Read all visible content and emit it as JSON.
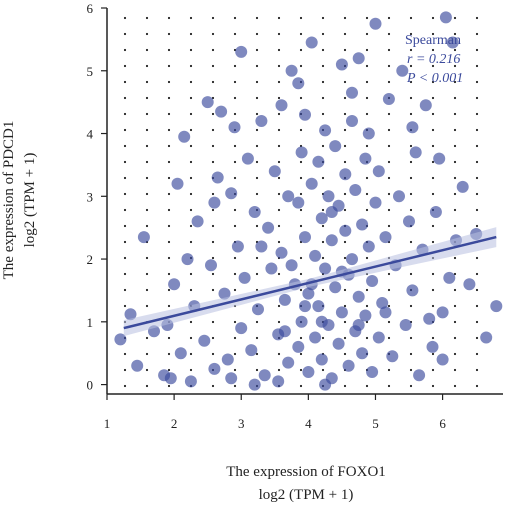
{
  "chart_data": {
    "type": "scatter",
    "title": "",
    "xlabel": "The expression of FOXO1",
    "xlabel_unit": "log2 (TPM + 1)",
    "ylabel": "The expression of PDCD1",
    "ylabel_unit": "log2 (TPM + 1)",
    "xlim": [
      1.0,
      6.9
    ],
    "ylim": [
      -0.15,
      6.0
    ],
    "x_ticks": [
      1,
      2,
      3,
      4,
      5,
      6
    ],
    "y_ticks": [
      0,
      1,
      2,
      3,
      4,
      5,
      6
    ],
    "x_tick_labels": [
      "1",
      "2",
      "3",
      "4",
      "5",
      "6"
    ],
    "y_tick_labels": [
      "0",
      "1",
      "2",
      "3",
      "4",
      "5",
      "6"
    ],
    "grid": "dotted",
    "point_color": "#3b4a9c",
    "annotation": {
      "method": "Spearman",
      "r_label": "r = 0.216",
      "p_label": "P < 0.001"
    },
    "trend_line": {
      "x": [
        1.25,
        6.8
      ],
      "y": [
        0.9,
        2.35
      ]
    },
    "points": [
      [
        1.2,
        0.72
      ],
      [
        1.35,
        1.12
      ],
      [
        1.45,
        0.3
      ],
      [
        1.55,
        2.35
      ],
      [
        1.7,
        0.85
      ],
      [
        1.85,
        0.15
      ],
      [
        1.9,
        0.95
      ],
      [
        1.95,
        0.1
      ],
      [
        2.0,
        1.6
      ],
      [
        2.05,
        3.2
      ],
      [
        2.1,
        0.5
      ],
      [
        2.15,
        3.95
      ],
      [
        2.2,
        2.0
      ],
      [
        2.3,
        1.25
      ],
      [
        2.35,
        2.6
      ],
      [
        2.45,
        0.7
      ],
      [
        2.5,
        4.5
      ],
      [
        2.55,
        1.9
      ],
      [
        2.6,
        0.25
      ],
      [
        2.65,
        3.3
      ],
      [
        2.7,
        4.35
      ],
      [
        2.75,
        1.45
      ],
      [
        2.8,
        0.4
      ],
      [
        2.85,
        3.05
      ],
      [
        2.9,
        4.1
      ],
      [
        2.95,
        2.2
      ],
      [
        3.0,
        5.3
      ],
      [
        3.0,
        0.9
      ],
      [
        3.05,
        1.7
      ],
      [
        3.1,
        3.6
      ],
      [
        3.15,
        0.55
      ],
      [
        3.2,
        2.75
      ],
      [
        3.25,
        1.2
      ],
      [
        3.3,
        4.2
      ],
      [
        3.35,
        0.15
      ],
      [
        3.4,
        2.5
      ],
      [
        3.45,
        1.85
      ],
      [
        3.5,
        3.4
      ],
      [
        3.55,
        0.8
      ],
      [
        3.6,
        4.45
      ],
      [
        3.6,
        2.1
      ],
      [
        3.65,
        1.35
      ],
      [
        3.7,
        0.35
      ],
      [
        3.7,
        3.0
      ],
      [
        3.75,
        5.0
      ],
      [
        3.8,
        1.6
      ],
      [
        3.85,
        2.9
      ],
      [
        3.85,
        0.6
      ],
      [
        3.9,
        3.7
      ],
      [
        3.9,
        1.0
      ],
      [
        3.95,
        2.35
      ],
      [
        3.95,
        4.3
      ],
      [
        4.0,
        0.2
      ],
      [
        4.0,
        1.45
      ],
      [
        4.05,
        3.2
      ],
      [
        4.05,
        5.45
      ],
      [
        4.1,
        2.05
      ],
      [
        4.1,
        0.75
      ],
      [
        4.15,
        3.55
      ],
      [
        4.15,
        1.25
      ],
      [
        4.2,
        2.65
      ],
      [
        4.2,
        0.4
      ],
      [
        4.25,
        4.05
      ],
      [
        4.25,
        1.85
      ],
      [
        4.3,
        3.0
      ],
      [
        4.3,
        0.95
      ],
      [
        4.35,
        2.3
      ],
      [
        4.35,
        0.1
      ],
      [
        4.4,
        1.55
      ],
      [
        4.4,
        3.8
      ],
      [
        4.45,
        2.85
      ],
      [
        4.45,
        0.65
      ],
      [
        4.5,
        5.1
      ],
      [
        4.5,
        1.15
      ],
      [
        4.55,
        2.45
      ],
      [
        4.55,
        3.35
      ],
      [
        4.6,
        0.3
      ],
      [
        4.6,
        1.75
      ],
      [
        4.65,
        4.2
      ],
      [
        4.65,
        2.0
      ],
      [
        4.7,
        0.85
      ],
      [
        4.7,
        3.1
      ],
      [
        4.75,
        1.4
      ],
      [
        4.75,
        5.2
      ],
      [
        4.8,
        2.55
      ],
      [
        4.8,
        0.5
      ],
      [
        4.85,
        3.6
      ],
      [
        4.85,
        1.1
      ],
      [
        4.9,
        2.2
      ],
      [
        4.9,
        4.0
      ],
      [
        4.95,
        0.2
      ],
      [
        4.95,
        1.65
      ],
      [
        5.0,
        5.75
      ],
      [
        5.0,
        2.9
      ],
      [
        5.05,
        0.75
      ],
      [
        5.05,
        3.4
      ],
      [
        5.1,
        1.3
      ],
      [
        5.15,
        2.35
      ],
      [
        5.2,
        4.55
      ],
      [
        5.25,
        0.45
      ],
      [
        5.3,
        1.9
      ],
      [
        5.35,
        3.0
      ],
      [
        5.4,
        5.0
      ],
      [
        5.45,
        0.95
      ],
      [
        5.5,
        2.6
      ],
      [
        5.55,
        1.5
      ],
      [
        5.6,
        3.7
      ],
      [
        5.65,
        0.15
      ],
      [
        5.7,
        2.15
      ],
      [
        5.75,
        4.45
      ],
      [
        5.8,
        1.05
      ],
      [
        5.9,
        2.75
      ],
      [
        5.95,
        3.6
      ],
      [
        6.0,
        0.4
      ],
      [
        6.05,
        5.85
      ],
      [
        6.1,
        1.7
      ],
      [
        6.15,
        5.45
      ],
      [
        6.2,
        2.3
      ],
      [
        6.3,
        3.15
      ],
      [
        6.4,
        1.6
      ],
      [
        6.5,
        2.4
      ],
      [
        6.65,
        0.75
      ],
      [
        6.8,
        1.25
      ],
      [
        6.0,
        1.15
      ],
      [
        5.85,
        0.6
      ],
      [
        3.2,
        0.0
      ],
      [
        3.55,
        0.05
      ],
      [
        4.25,
        0.0
      ],
      [
        2.25,
        0.05
      ],
      [
        2.85,
        0.1
      ],
      [
        3.85,
        4.8
      ],
      [
        4.65,
        4.65
      ],
      [
        5.55,
        4.1
      ],
      [
        2.6,
        2.9
      ],
      [
        3.3,
        2.2
      ],
      [
        4.35,
        2.75
      ],
      [
        5.15,
        1.15
      ],
      [
        3.75,
        1.9
      ],
      [
        4.05,
        1.6
      ],
      [
        4.5,
        1.8
      ],
      [
        3.95,
        1.25
      ],
      [
        4.2,
        1.0
      ],
      [
        4.75,
        0.95
      ],
      [
        3.65,
        0.85
      ]
    ]
  }
}
